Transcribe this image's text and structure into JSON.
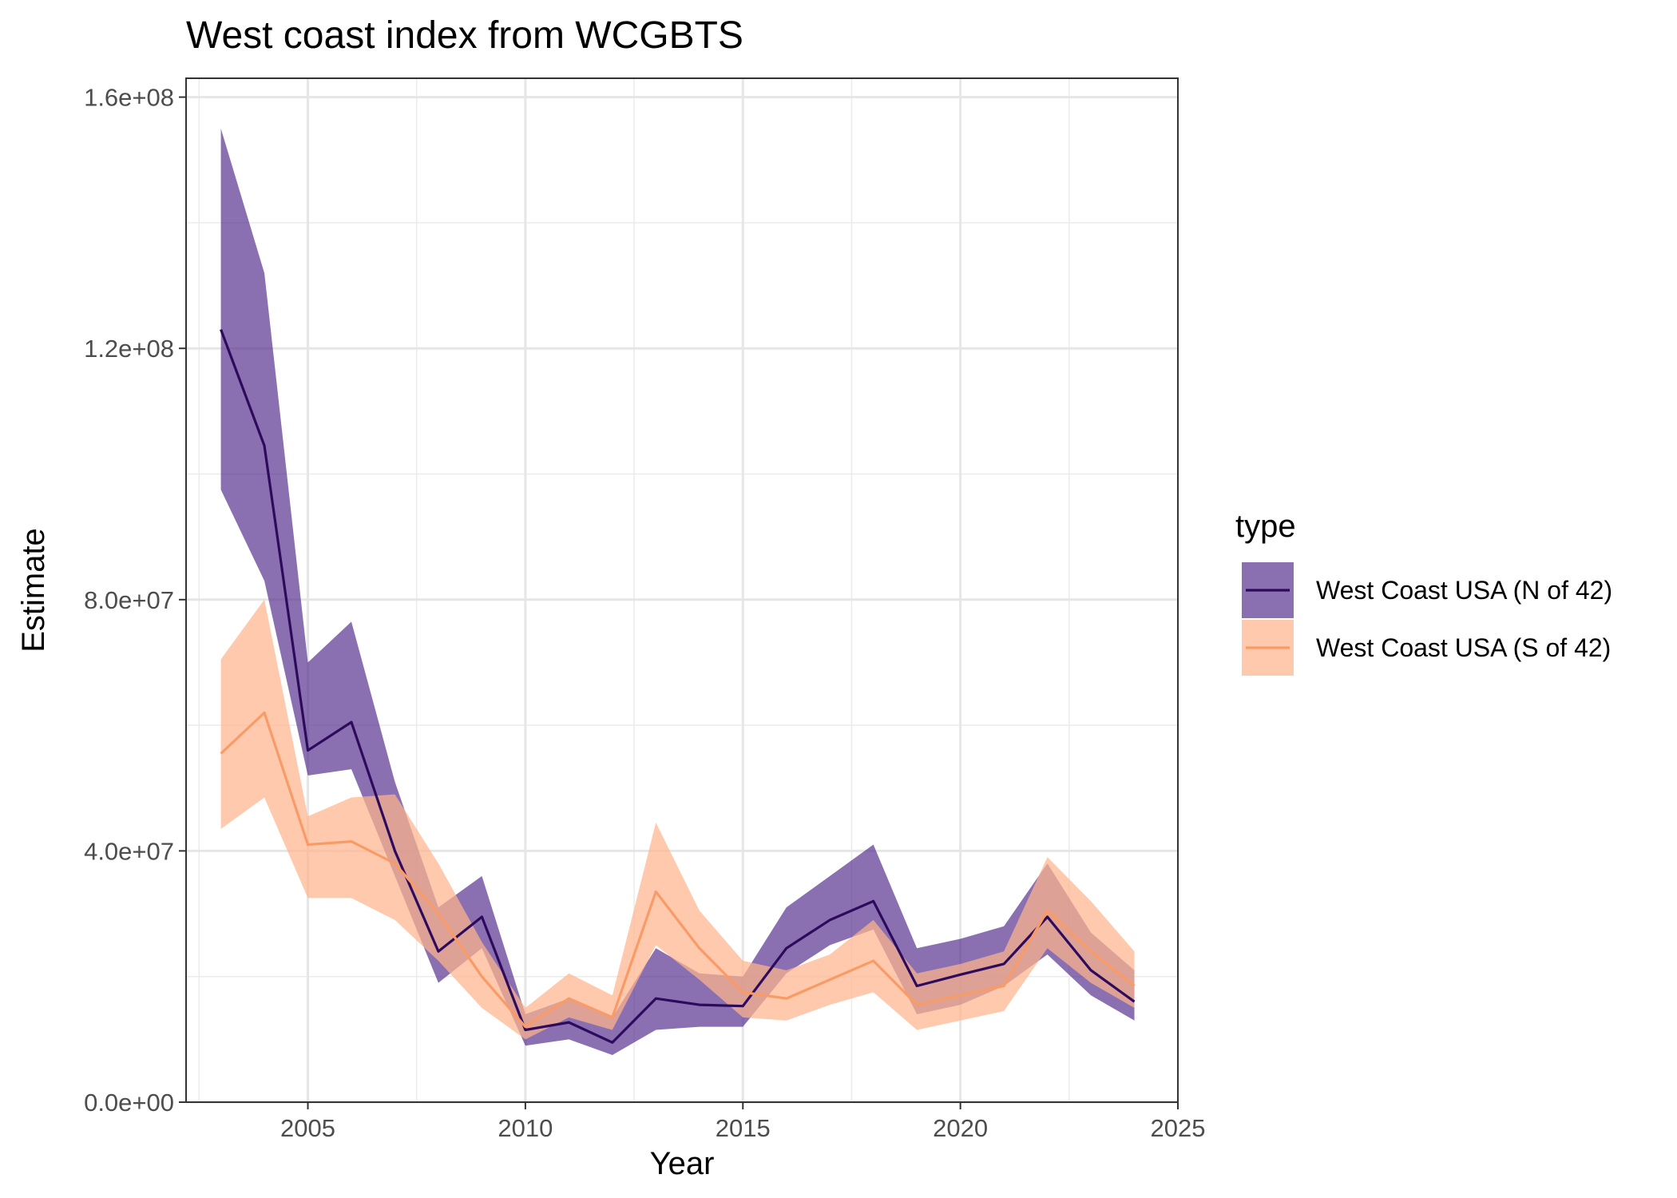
{
  "chart_data": {
    "type": "line",
    "title": "West coast index from WCGBTS",
    "xlabel": "Year",
    "ylabel": "Estimate",
    "xlim": [
      2002.2,
      2025.0
    ],
    "ylim": [
      0,
      163000000
    ],
    "x_ticks": [
      2005,
      2010,
      2015,
      2020,
      2025
    ],
    "x_tick_labels": [
      "2005",
      "2010",
      "2015",
      "2020",
      "2025"
    ],
    "y_ticks": [
      0,
      40000000,
      80000000,
      120000000,
      160000000
    ],
    "y_tick_labels": [
      "0.0e+00",
      "4.0e+07",
      "8.0e+07",
      "1.2e+08",
      "1.6e+08"
    ],
    "grid": true,
    "legend": {
      "title": "type",
      "position": "right"
    },
    "x": [
      2003,
      2004,
      2005,
      2006,
      2007,
      2008,
      2009,
      2010,
      2011,
      2012,
      2013,
      2014,
      2015,
      2016,
      2017,
      2018,
      2019,
      2020,
      2021,
      2022,
      2023,
      2024
    ],
    "series": [
      {
        "name": "West Coast USA (N of 42)",
        "line_color": "#2d0a5c",
        "fill_color": "#4d2689",
        "values": [
          123000000,
          104500000,
          56000000,
          60500000,
          40000000,
          24000000,
          29500000,
          11500000,
          12700000,
          9500000,
          16500000,
          15500000,
          15300000,
          24500000,
          29000000,
          32000000,
          18500000,
          20300000,
          22000000,
          29500000,
          21000000,
          16000000
        ],
        "lower": [
          97500000,
          83000000,
          52000000,
          53000000,
          36000000,
          19000000,
          24500000,
          9000000,
          10000000,
          7500000,
          11500000,
          12000000,
          12000000,
          20500000,
          25000000,
          27500000,
          14000000,
          15500000,
          18500000,
          23500000,
          17000000,
          13000000
        ],
        "upper": [
          155000000,
          132000000,
          70000000,
          76500000,
          51000000,
          31000000,
          36000000,
          14000000,
          16500000,
          13500000,
          24500000,
          20500000,
          20000000,
          31000000,
          36000000,
          41000000,
          24500000,
          26000000,
          28000000,
          38000000,
          27000000,
          21000000
        ]
      },
      {
        "name": "West Coast USA (S of 42)",
        "line_color": "#f99b66",
        "fill_color": "#fdb48c",
        "values": [
          55500000,
          62000000,
          41000000,
          41500000,
          38000000,
          30000000,
          20000000,
          12000000,
          16500000,
          13500000,
          33500000,
          24500000,
          17500000,
          16500000,
          19500000,
          22500000,
          15500000,
          17000000,
          18500000,
          30500000,
          24000000,
          18500000
        ],
        "lower": [
          43500000,
          48500000,
          32500000,
          32500000,
          29000000,
          22500000,
          15000000,
          10000000,
          13500000,
          11500000,
          25000000,
          19500000,
          13500000,
          13000000,
          15500000,
          17500000,
          11500000,
          13000000,
          14500000,
          24500000,
          19000000,
          15000000
        ],
        "upper": [
          70500000,
          80000000,
          45500000,
          48500000,
          49000000,
          38000000,
          25500000,
          15000000,
          20500000,
          17000000,
          44500000,
          30500000,
          22500000,
          21000000,
          23500000,
          29000000,
          20500000,
          22000000,
          24000000,
          39000000,
          32000000,
          24000000
        ]
      }
    ]
  }
}
